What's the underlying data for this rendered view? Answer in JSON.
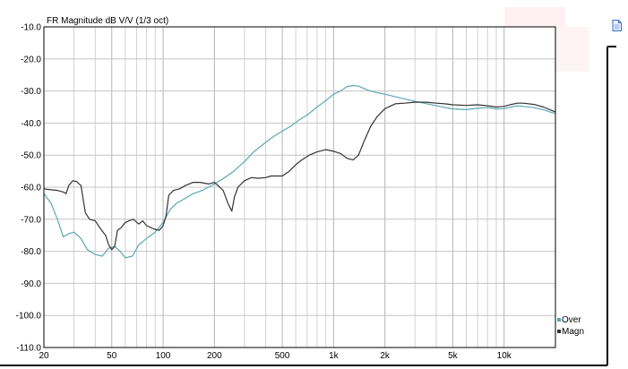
{
  "chart_data": {
    "type": "line",
    "title": "FR Magnitude dB V/V (1/3 oct)",
    "x_scale": "log",
    "xlim": [
      20,
      20000
    ],
    "ylim": [
      -110,
      -10
    ],
    "grid": true,
    "legend_position": "bottom-right",
    "x_tick_labels": [
      {
        "value": 20,
        "label": "20"
      },
      {
        "value": 50,
        "label": "50"
      },
      {
        "value": 100,
        "label": "100"
      },
      {
        "value": 200,
        "label": "200"
      },
      {
        "value": 500,
        "label": "500"
      },
      {
        "value": 1000,
        "label": "1k"
      },
      {
        "value": 2000,
        "label": "2k"
      },
      {
        "value": 5000,
        "label": "5k"
      },
      {
        "value": 10000,
        "label": "10k"
      }
    ],
    "y_ticks": [
      -10,
      -20,
      -30,
      -40,
      -50,
      -60,
      -70,
      -80,
      -90,
      -100,
      -110
    ],
    "y_tick_labels": [
      "-10.0",
      "-20.0",
      "-30.0",
      "-40.0",
      "-50.0",
      "-60.0",
      "-70.0",
      "-80.0",
      "-90.0",
      "-100.0",
      "-110.0"
    ],
    "series": [
      {
        "name": "Over",
        "color": "#5aa8b0",
        "points": [
          [
            20,
            -62
          ],
          [
            22,
            -65
          ],
          [
            24,
            -70
          ],
          [
            26,
            -75.5
          ],
          [
            28,
            -74.5
          ],
          [
            30,
            -74
          ],
          [
            33,
            -76
          ],
          [
            36,
            -79.5
          ],
          [
            40,
            -81
          ],
          [
            44,
            -81.5
          ],
          [
            48,
            -79
          ],
          [
            52,
            -78.5
          ],
          [
            56,
            -80
          ],
          [
            60,
            -82
          ],
          [
            66,
            -81.5
          ],
          [
            72,
            -78
          ],
          [
            80,
            -76
          ],
          [
            90,
            -74
          ],
          [
            100,
            -71
          ],
          [
            110,
            -67
          ],
          [
            120,
            -65
          ],
          [
            135,
            -63.5
          ],
          [
            150,
            -62
          ],
          [
            170,
            -61
          ],
          [
            200,
            -59
          ],
          [
            230,
            -57
          ],
          [
            260,
            -55
          ],
          [
            300,
            -52
          ],
          [
            340,
            -49
          ],
          [
            400,
            -46
          ],
          [
            450,
            -44
          ],
          [
            500,
            -42.5
          ],
          [
            560,
            -41
          ],
          [
            630,
            -39
          ],
          [
            700,
            -37.5
          ],
          [
            800,
            -35
          ],
          [
            900,
            -33
          ],
          [
            1000,
            -31
          ],
          [
            1100,
            -30
          ],
          [
            1200,
            -28.6
          ],
          [
            1300,
            -28.3
          ],
          [
            1400,
            -28.5
          ],
          [
            1600,
            -29.8
          ],
          [
            1800,
            -30.5
          ],
          [
            2000,
            -31
          ],
          [
            2400,
            -32
          ],
          [
            3000,
            -33.2
          ],
          [
            4000,
            -34.6
          ],
          [
            5000,
            -35.6
          ],
          [
            6000,
            -35.8
          ],
          [
            7000,
            -35.4
          ],
          [
            8000,
            -35.2
          ],
          [
            9000,
            -35.6
          ],
          [
            10000,
            -35.5
          ],
          [
            11000,
            -35
          ],
          [
            12000,
            -34.6
          ],
          [
            13000,
            -34.8
          ],
          [
            15000,
            -35.2
          ],
          [
            17000,
            -35.8
          ],
          [
            18500,
            -36.5
          ],
          [
            20000,
            -37
          ]
        ]
      },
      {
        "name": "Magn",
        "color": "#333333",
        "points": [
          [
            20,
            -60.5
          ],
          [
            22,
            -60.8
          ],
          [
            24,
            -61
          ],
          [
            26,
            -61.5
          ],
          [
            27,
            -62
          ],
          [
            28,
            -59.5
          ],
          [
            29.5,
            -58
          ],
          [
            31,
            -58.2
          ],
          [
            33,
            -59.5
          ],
          [
            35,
            -68
          ],
          [
            37,
            -70
          ],
          [
            40,
            -70.5
          ],
          [
            43,
            -73
          ],
          [
            46,
            -75
          ],
          [
            48,
            -78
          ],
          [
            50,
            -79.5
          ],
          [
            52,
            -78.5
          ],
          [
            54,
            -73.5
          ],
          [
            57,
            -72.5
          ],
          [
            60,
            -71
          ],
          [
            63,
            -70.5
          ],
          [
            67,
            -70
          ],
          [
            72,
            -71.5
          ],
          [
            76,
            -70.5
          ],
          [
            80,
            -72
          ],
          [
            88,
            -73
          ],
          [
            95,
            -73.5
          ],
          [
            100,
            -72
          ],
          [
            104,
            -69
          ],
          [
            108,
            -62.5
          ],
          [
            115,
            -61
          ],
          [
            125,
            -60.5
          ],
          [
            135,
            -59.5
          ],
          [
            150,
            -58.5
          ],
          [
            165,
            -58.5
          ],
          [
            185,
            -59
          ],
          [
            200,
            -58.5
          ],
          [
            215,
            -60
          ],
          [
            225,
            -61
          ],
          [
            240,
            -65
          ],
          [
            253,
            -67.5
          ],
          [
            262,
            -63
          ],
          [
            275,
            -60
          ],
          [
            300,
            -58
          ],
          [
            330,
            -57
          ],
          [
            360,
            -57.2
          ],
          [
            400,
            -57
          ],
          [
            430,
            -56.5
          ],
          [
            460,
            -56.5
          ],
          [
            500,
            -56.5
          ],
          [
            550,
            -55
          ],
          [
            600,
            -53
          ],
          [
            650,
            -51.5
          ],
          [
            720,
            -50
          ],
          [
            800,
            -49
          ],
          [
            900,
            -48.3
          ],
          [
            1000,
            -48.8
          ],
          [
            1100,
            -49.5
          ],
          [
            1200,
            -51
          ],
          [
            1300,
            -51.5
          ],
          [
            1400,
            -50
          ],
          [
            1500,
            -46
          ],
          [
            1650,
            -41
          ],
          [
            1800,
            -38
          ],
          [
            2000,
            -35.5
          ],
          [
            2300,
            -34
          ],
          [
            2600,
            -33.8
          ],
          [
            3000,
            -33.5
          ],
          [
            3500,
            -33.5
          ],
          [
            4000,
            -33.8
          ],
          [
            4500,
            -34
          ],
          [
            5000,
            -34.3
          ],
          [
            6000,
            -34.5
          ],
          [
            7000,
            -34.3
          ],
          [
            8000,
            -34.6
          ],
          [
            9000,
            -35
          ],
          [
            10000,
            -34.8
          ],
          [
            11000,
            -34.2
          ],
          [
            12000,
            -33.8
          ],
          [
            13000,
            -33.8
          ],
          [
            15000,
            -34.2
          ],
          [
            17000,
            -35
          ],
          [
            18500,
            -35.8
          ],
          [
            20000,
            -36.5
          ]
        ]
      }
    ]
  },
  "icons": {
    "corner_icon": "document-icon"
  }
}
